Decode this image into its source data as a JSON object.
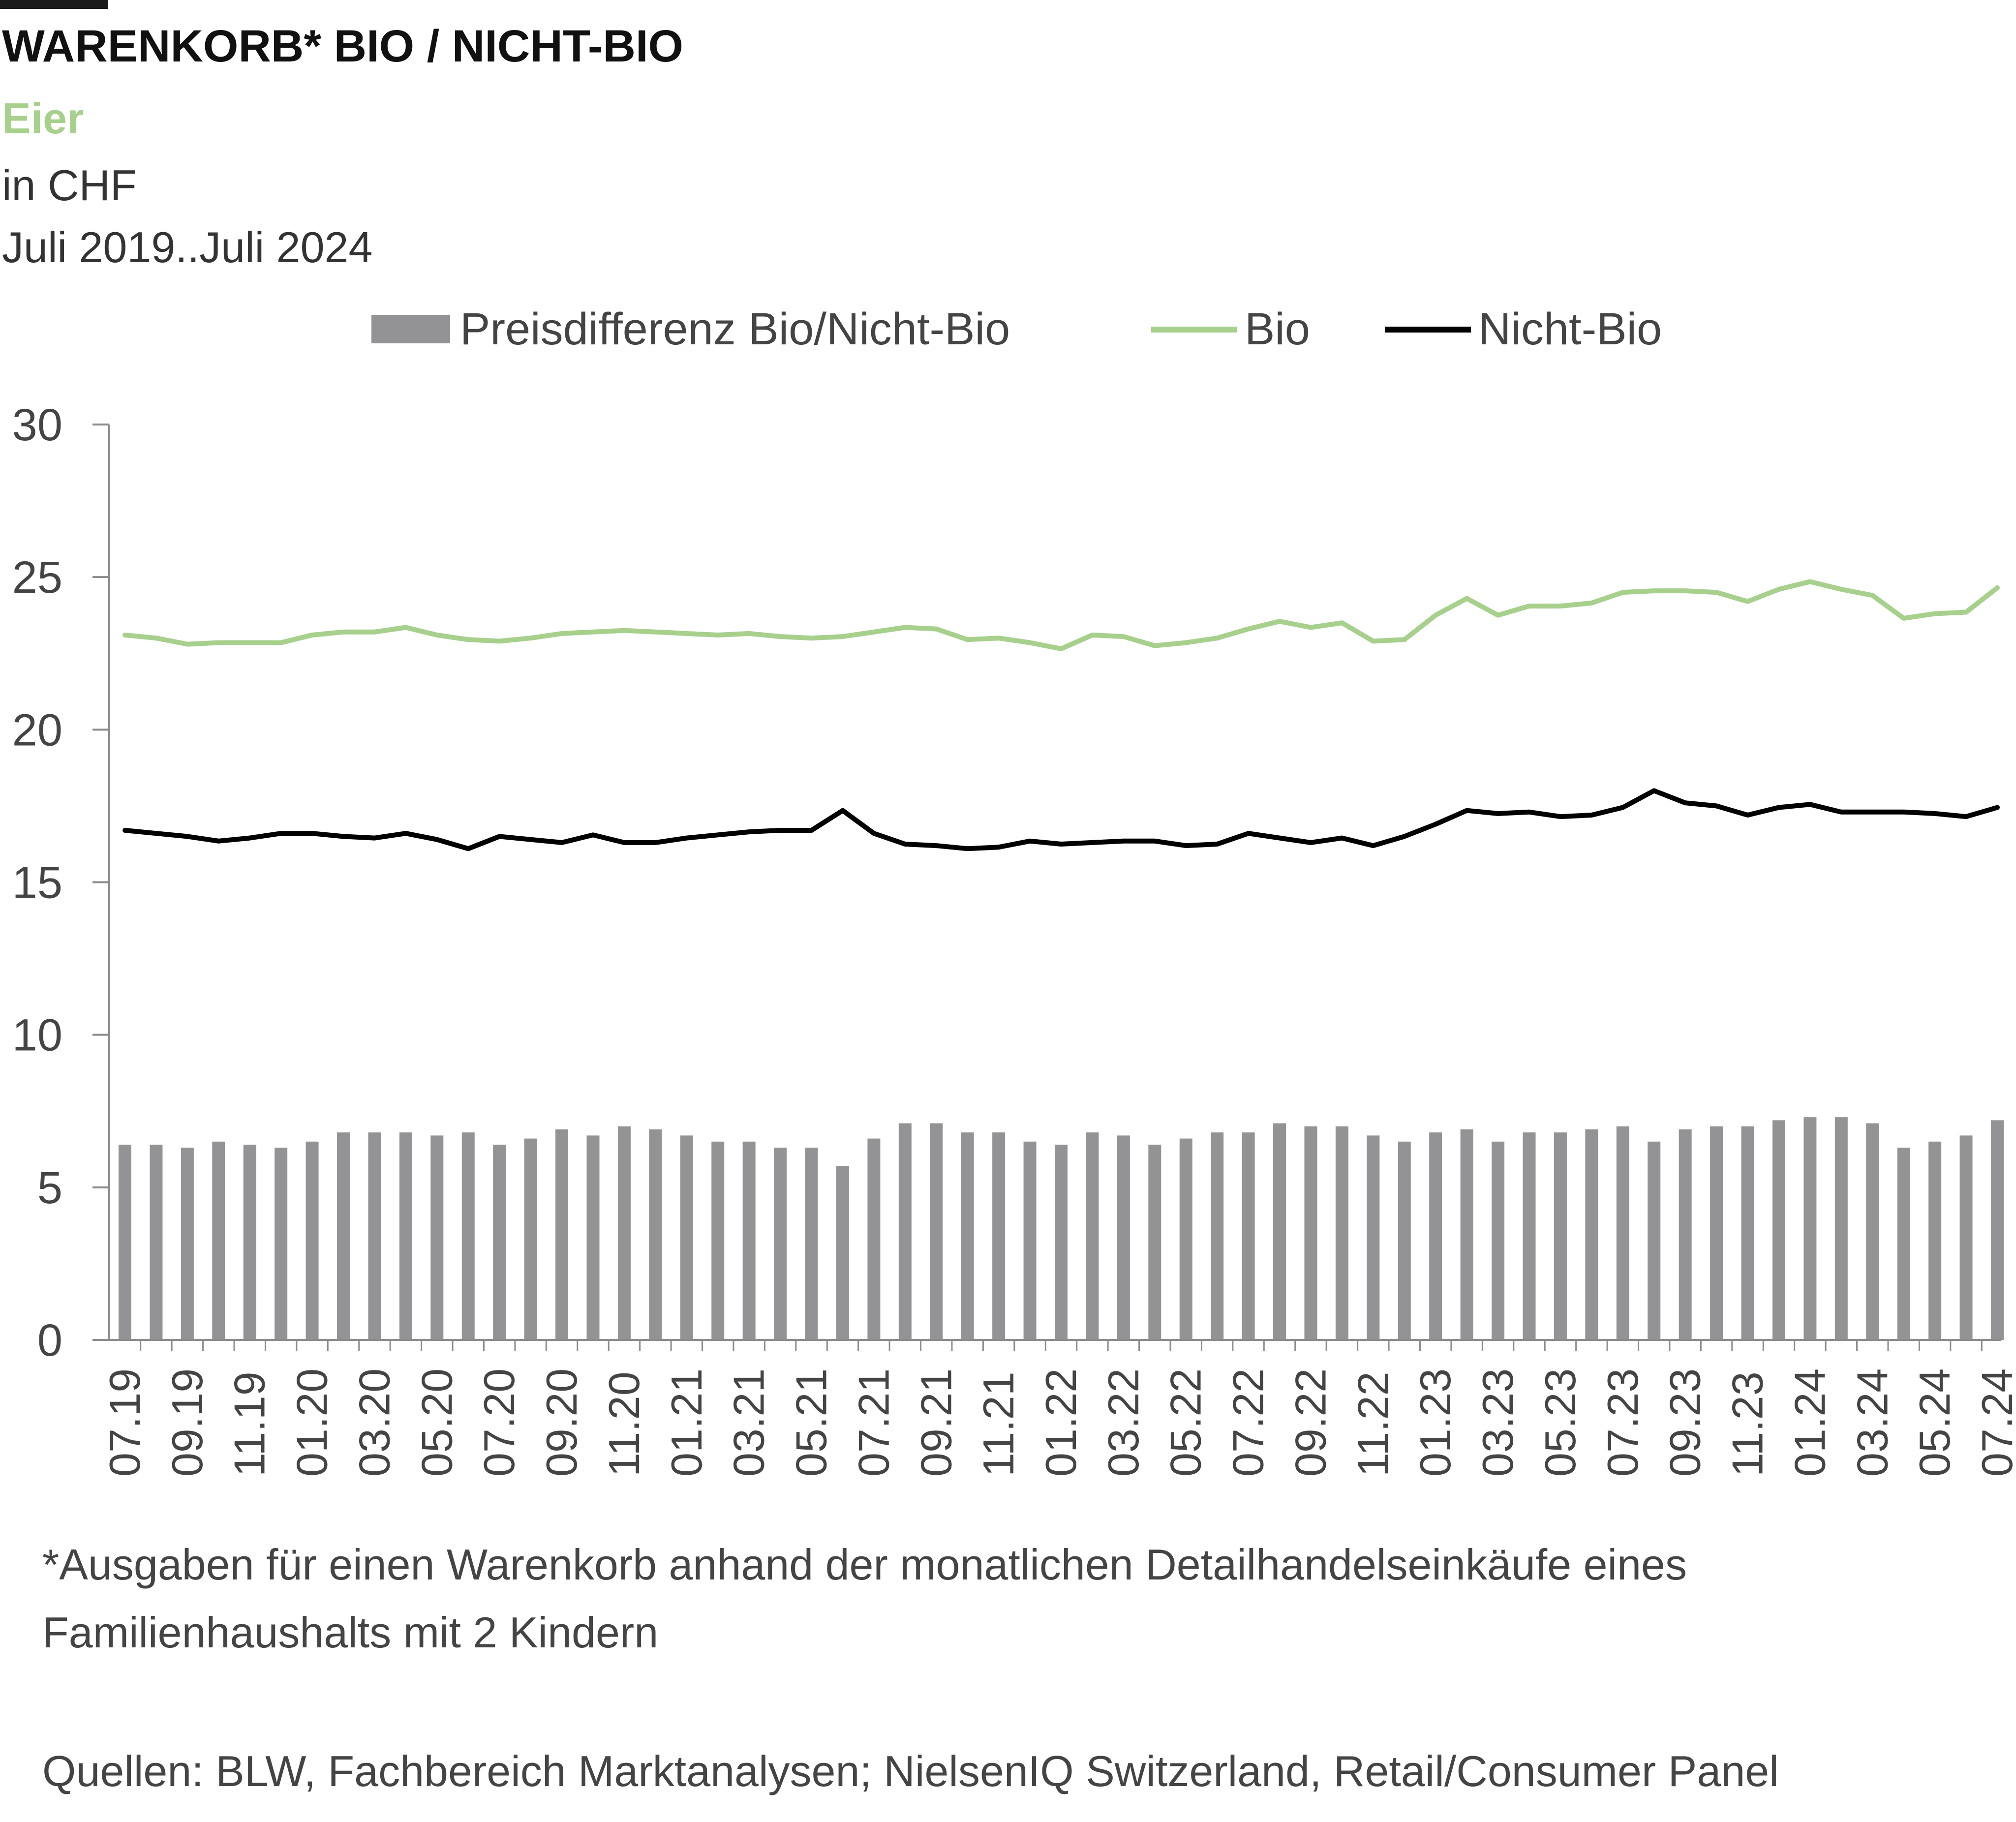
{
  "header": {
    "title": "WARENKORB* BIO / NICHT-BIO",
    "subtitle": "Eier",
    "unit": "in CHF",
    "period": "Juli 2019..Juli 2024"
  },
  "colors": {
    "bio": "#a8d08d",
    "nicht_bio": "#000000",
    "bars": "#939395",
    "axis": "#8c8c8c",
    "subtitle": "#a8d08d"
  },
  "footer": {
    "note_line1": "*Ausgaben für einen Warenkorb anhand der monatlichen Detailhandelseinkäufe eines",
    "note_line2": "Familienhaushalts mit 2 Kindern",
    "source": "Quellen: BLW, Fachbereich Marktanalysen; NielsenIQ Switzerland, Retail/Consumer Panel"
  },
  "chart_data": {
    "type": "bar+line",
    "ylim": [
      0,
      30
    ],
    "yticks": [
      0,
      5,
      10,
      15,
      20,
      25,
      30
    ],
    "grid": false,
    "legend_position": "top",
    "categories": [
      "07.19",
      "08.19",
      "09.19",
      "10.19",
      "11.19",
      "12.19",
      "01.20",
      "02.20",
      "03.20",
      "04.20",
      "05.20",
      "06.20",
      "07.20",
      "08.20",
      "09.20",
      "10.20",
      "11.20",
      "12.20",
      "01.21",
      "02.21",
      "03.21",
      "04.21",
      "05.21",
      "06.21",
      "07.21",
      "08.21",
      "09.21",
      "10.21",
      "11.21",
      "12.21",
      "01.22",
      "02.22",
      "03.22",
      "04.22",
      "05.22",
      "06.22",
      "07.22",
      "08.22",
      "09.22",
      "10.22",
      "11.22",
      "12.22",
      "01.23",
      "02.23",
      "03.23",
      "04.23",
      "05.23",
      "06.23",
      "07.23",
      "08.23",
      "09.23",
      "10.23",
      "11.23",
      "12.23",
      "01.24",
      "02.24",
      "03.24",
      "04.24",
      "05.24",
      "06.24",
      "07.24"
    ],
    "tick_labels": [
      "07.19",
      "09.19",
      "11.19",
      "01.20",
      "03.20",
      "05.20",
      "07.20",
      "09.20",
      "11.20",
      "01.21",
      "03.21",
      "05.21",
      "07.21",
      "09.21",
      "11.21",
      "01.22",
      "03.22",
      "05.22",
      "07.22",
      "09.22",
      "11.22",
      "01.23",
      "03.23",
      "05.23",
      "07.23",
      "09.23",
      "11.23",
      "01.24",
      "03.24",
      "05.24",
      "07.24"
    ],
    "series": [
      {
        "name": "Preisdifferenz Bio/Nicht-Bio",
        "type": "bar",
        "values": [
          6.4,
          6.4,
          6.3,
          6.5,
          6.4,
          6.3,
          6.5,
          6.8,
          6.8,
          6.8,
          6.7,
          6.8,
          6.4,
          6.6,
          6.9,
          6.7,
          7.0,
          6.9,
          6.7,
          6.5,
          6.5,
          6.3,
          6.3,
          5.7,
          6.6,
          7.1,
          7.1,
          6.8,
          6.8,
          6.5,
          6.4,
          6.8,
          6.7,
          6.4,
          6.6,
          6.8,
          6.8,
          7.1,
          7.0,
          7.0,
          6.7,
          6.5,
          6.8,
          6.9,
          6.5,
          6.8,
          6.8,
          6.9,
          7.0,
          6.5,
          6.9,
          7.0,
          7.0,
          7.2,
          7.3,
          7.3,
          7.1,
          6.3,
          6.5,
          6.7,
          7.2
        ]
      },
      {
        "name": "Bio",
        "type": "line",
        "values": [
          23.1,
          23.0,
          22.8,
          22.85,
          22.85,
          22.85,
          23.1,
          23.2,
          23.2,
          23.35,
          23.1,
          22.95,
          22.9,
          23.0,
          23.15,
          23.2,
          23.25,
          23.2,
          23.15,
          23.1,
          23.15,
          23.05,
          23.0,
          23.05,
          23.2,
          23.35,
          23.3,
          22.95,
          23.0,
          22.85,
          22.65,
          23.1,
          23.05,
          22.75,
          22.85,
          23.0,
          23.3,
          23.55,
          23.35,
          23.5,
          22.9,
          22.95,
          23.75,
          24.3,
          23.75,
          24.05,
          24.05,
          24.15,
          24.5,
          24.55,
          24.55,
          24.5,
          24.2,
          24.6,
          24.85,
          24.6,
          24.4,
          23.65,
          23.8,
          23.85,
          24.65
        ]
      },
      {
        "name": "Nicht-Bio",
        "type": "line",
        "values": [
          16.7,
          16.6,
          16.5,
          16.35,
          16.45,
          16.6,
          16.6,
          16.5,
          16.45,
          16.6,
          16.4,
          16.1,
          16.5,
          16.4,
          16.3,
          16.55,
          16.3,
          16.3,
          16.45,
          16.55,
          16.65,
          16.7,
          16.7,
          17.35,
          16.6,
          16.25,
          16.2,
          16.1,
          16.15,
          16.35,
          16.25,
          16.3,
          16.35,
          16.35,
          16.2,
          16.25,
          16.6,
          16.45,
          16.3,
          16.45,
          16.2,
          16.5,
          16.9,
          17.35,
          17.25,
          17.3,
          17.15,
          17.2,
          17.45,
          18.0,
          17.6,
          17.5,
          17.2,
          17.45,
          17.55,
          17.3,
          17.3,
          17.3,
          17.25,
          17.15,
          17.45
        ]
      }
    ]
  }
}
